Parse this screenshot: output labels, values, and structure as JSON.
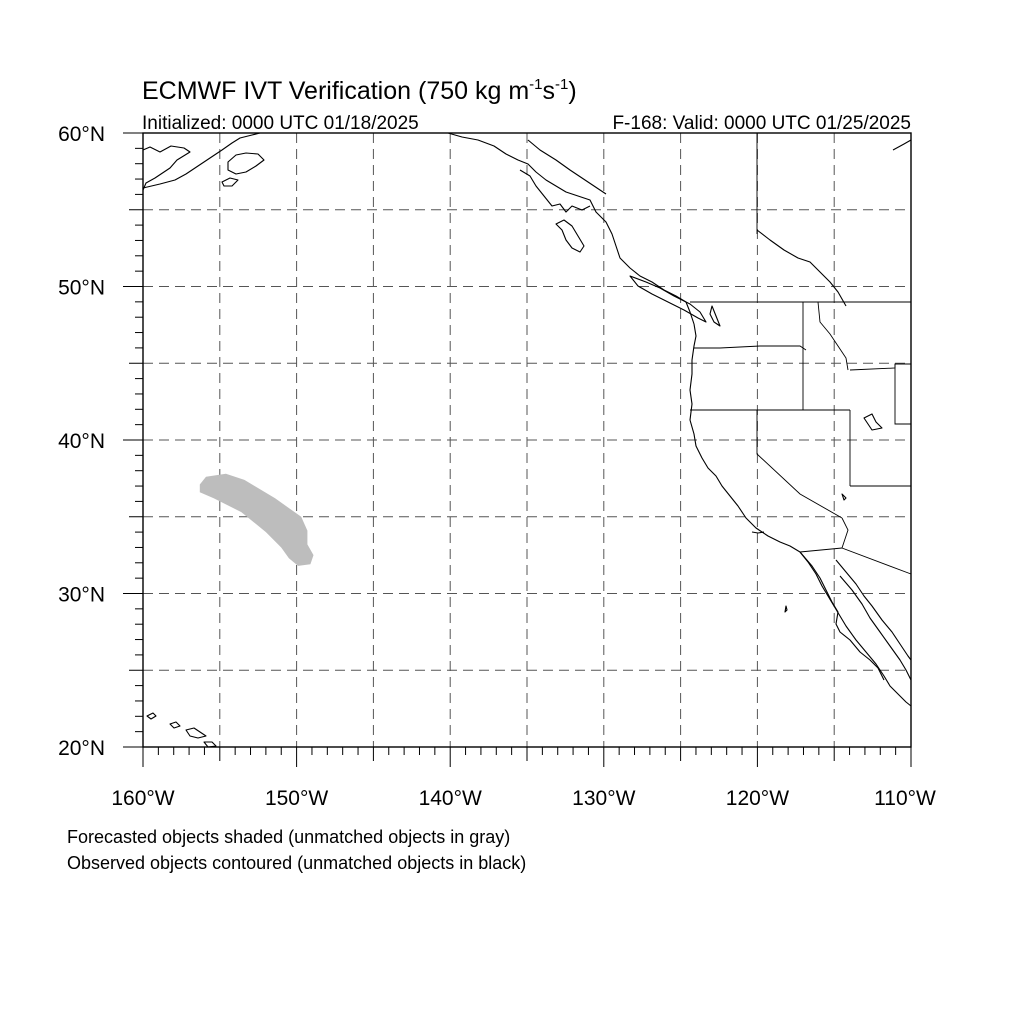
{
  "title": {
    "main": "ECMWF IVT Verification (750 kg m",
    "sup1": "-1",
    "mid": "s",
    "sup2": "-1",
    "end": ")"
  },
  "subtitle_left": "Initialized: 0000 UTC 01/18/2025",
  "subtitle_right": "F-168: Valid: 0000 UTC 01/25/2025",
  "map": {
    "lon_range": [
      -160,
      -110
    ],
    "lat_range": [
      20,
      60
    ],
    "lat_labels": [
      "60°N",
      "50°N",
      "40°N",
      "30°N",
      "20°N"
    ],
    "lon_labels": [
      "160°W",
      "150°W",
      "140°W",
      "130°W",
      "120°W",
      "110°W"
    ],
    "grid": "dashed every 5°",
    "colors": {
      "forecast_unmatched": "#bdbdbd",
      "coast": "#000000",
      "grid": "#555555"
    }
  },
  "objects": {
    "forecast_unmatched": [
      {
        "name": "forecast-object-1",
        "color": "gray",
        "outline_lonlat": [
          [
            -156.3,
            37.1
          ],
          [
            -155.9,
            37.6
          ],
          [
            -154.6,
            37.8
          ],
          [
            -153.4,
            37.4
          ],
          [
            -151.4,
            36.2
          ],
          [
            -149.7,
            35.0
          ],
          [
            -149.3,
            34.1
          ],
          [
            -149.3,
            33.2
          ],
          [
            -148.9,
            32.5
          ],
          [
            -149.1,
            31.9
          ],
          [
            -149.9,
            31.8
          ],
          [
            -150.5,
            32.3
          ],
          [
            -151.0,
            33.0
          ],
          [
            -152.0,
            34.0
          ],
          [
            -153.6,
            35.3
          ],
          [
            -155.4,
            36.2
          ],
          [
            -156.3,
            36.6
          ]
        ]
      }
    ]
  },
  "captions": [
    "Forecasted objects shaded (unmatched objects in gray)",
    "Observed objects contoured (unmatched objects in black)"
  ]
}
